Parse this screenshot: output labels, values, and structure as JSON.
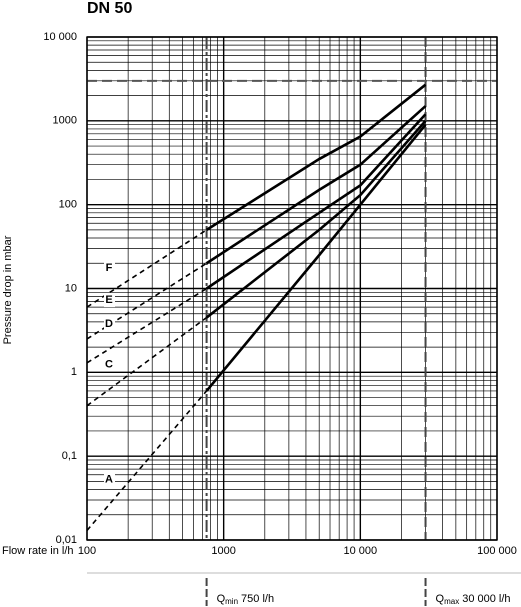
{
  "chart_data": {
    "type": "line",
    "title": "DN 50",
    "ylabel": "Pressure drop in mbar",
    "xlabel": "Flow rate in l/h",
    "xscale": "log",
    "yscale": "log",
    "grid": true,
    "minor_grid": true,
    "xlim": [
      100,
      100000
    ],
    "ylim": [
      0.01,
      10000
    ],
    "xticks": [
      100,
      1000,
      {
        "value": 10000,
        "label": "10 000"
      },
      {
        "value": 100000,
        "label": "100 000"
      }
    ],
    "yticks": [
      {
        "value": 0.01,
        "label": "0,01"
      },
      {
        "value": 0.1,
        "label": "0,1"
      },
      1,
      10,
      100,
      1000,
      {
        "value": 10000,
        "label": "10 000"
      }
    ],
    "x": [
      100,
      750,
      5000,
      10000,
      30000
    ],
    "series": [
      {
        "name": "F",
        "color": "#000000",
        "values": [
          6,
          50,
          350,
          650,
          2700
        ]
      },
      {
        "name": "E",
        "color": "#000000",
        "values": [
          2.5,
          20,
          150,
          300,
          1500
        ]
      },
      {
        "name": "D",
        "color": "#000000",
        "values": [
          1.3,
          10,
          80,
          170,
          1200
        ]
      },
      {
        "name": "C",
        "color": "#000000",
        "values": [
          0.4,
          4.5,
          50,
          130,
          1000
        ]
      },
      {
        "name": "A",
        "color": "#000000",
        "values": [
          0.013,
          0.6,
          25,
          100,
          900
        ]
      }
    ],
    "reference_y": 3000,
    "markers": [
      {
        "x": 750,
        "symbol": "Q",
        "sub": "min",
        "label": "750 l/h"
      },
      {
        "x": 30000,
        "symbol": "Q",
        "sub": "max",
        "label": "30 000 l/h"
      }
    ]
  }
}
